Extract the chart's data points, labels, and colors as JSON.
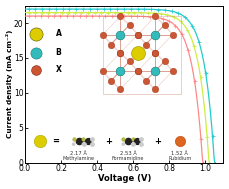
{
  "xlabel": "Voltage (V)",
  "ylabel": "Current density (mA cm⁻²)",
  "xlim": [
    0.0,
    1.1
  ],
  "ylim": [
    0,
    22.5
  ],
  "yticks": [
    0,
    5,
    10,
    15,
    20
  ],
  "xticks": [
    0.0,
    0.2,
    0.4,
    0.6,
    0.8,
    1.0
  ],
  "bg": "#ffffff",
  "curve_colors": [
    "#ff8888",
    "#ccee44",
    "#22cccc"
  ],
  "jsc_vals": [
    21.0,
    21.5,
    22.0
  ],
  "voc_vals": [
    0.985,
    1.02,
    1.05
  ],
  "legend_colors": [
    "#ddcc00",
    "#33bbbb",
    "#cc5533"
  ],
  "legend_labels": [
    "A",
    "B",
    "X"
  ],
  "mol_texts": [
    "2.17 Å",
    "Methylamine",
    "2.53 Å",
    "Formamidine",
    "1.52 Å",
    "Rubidium"
  ]
}
